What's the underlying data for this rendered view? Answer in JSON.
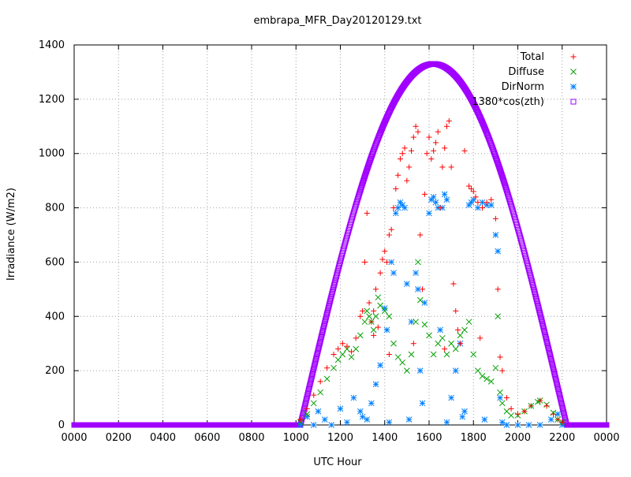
{
  "chart_data": {
    "type": "scatter",
    "title": "embrapa_MFR_Day20120129.txt",
    "xlabel": "UTC Hour",
    "ylabel": "Irradiance (W/m2)",
    "xlim": [
      0,
      24
    ],
    "ylim": [
      0,
      1400
    ],
    "x_tick_labels": [
      "0000",
      "0200",
      "0400",
      "0600",
      "0800",
      "1000",
      "1200",
      "1400",
      "1600",
      "1800",
      "2000",
      "2200",
      "0000"
    ],
    "y_ticks": [
      0,
      200,
      400,
      600,
      800,
      1000,
      1200,
      1400
    ],
    "grid": true,
    "legend_position": "top-right",
    "series": [
      {
        "name": "Total",
        "marker": "plus",
        "color": "#ff0000",
        "points": [
          [
            10.2,
            20
          ],
          [
            10.5,
            60
          ],
          [
            10.8,
            110
          ],
          [
            11.1,
            160
          ],
          [
            11.4,
            210
          ],
          [
            11.7,
            260
          ],
          [
            11.9,
            280
          ],
          [
            12.1,
            300
          ],
          [
            12.3,
            290
          ],
          [
            12.5,
            270
          ],
          [
            12.7,
            320
          ],
          [
            12.9,
            400
          ],
          [
            13.0,
            420
          ],
          [
            13.1,
            600
          ],
          [
            13.2,
            780
          ],
          [
            13.3,
            450
          ],
          [
            13.4,
            380
          ],
          [
            13.5,
            420
          ],
          [
            13.6,
            500
          ],
          [
            13.7,
            360
          ],
          [
            13.8,
            560
          ],
          [
            13.9,
            610
          ],
          [
            14.0,
            640
          ],
          [
            14.1,
            600
          ],
          [
            14.2,
            700
          ],
          [
            14.3,
            720
          ],
          [
            14.4,
            800
          ],
          [
            14.5,
            870
          ],
          [
            14.6,
            920
          ],
          [
            14.7,
            980
          ],
          [
            14.8,
            1000
          ],
          [
            14.9,
            1020
          ],
          [
            15.0,
            900
          ],
          [
            15.1,
            950
          ],
          [
            15.2,
            1010
          ],
          [
            15.3,
            1060
          ],
          [
            15.4,
            1100
          ],
          [
            15.5,
            1080
          ],
          [
            15.6,
            700
          ],
          [
            15.7,
            500
          ],
          [
            15.8,
            850
          ],
          [
            15.9,
            1000
          ],
          [
            16.0,
            1060
          ],
          [
            16.1,
            980
          ],
          [
            16.2,
            1010
          ],
          [
            16.3,
            1040
          ],
          [
            16.4,
            1080
          ],
          [
            16.5,
            800
          ],
          [
            16.6,
            950
          ],
          [
            16.7,
            1020
          ],
          [
            16.8,
            1100
          ],
          [
            16.9,
            1120
          ],
          [
            17.0,
            950
          ],
          [
            17.1,
            520
          ],
          [
            17.2,
            420
          ],
          [
            17.4,
            300
          ],
          [
            17.6,
            1010
          ],
          [
            17.8,
            880
          ],
          [
            17.9,
            870
          ],
          [
            18.0,
            860
          ],
          [
            18.1,
            840
          ],
          [
            18.2,
            820
          ],
          [
            18.4,
            800
          ],
          [
            18.6,
            820
          ],
          [
            18.8,
            830
          ],
          [
            19.0,
            760
          ],
          [
            19.1,
            500
          ],
          [
            19.2,
            250
          ],
          [
            19.3,
            200
          ],
          [
            19.5,
            100
          ],
          [
            19.7,
            60
          ],
          [
            20.0,
            40
          ],
          [
            20.3,
            50
          ],
          [
            20.6,
            70
          ],
          [
            21.0,
            90
          ],
          [
            21.3,
            70
          ],
          [
            21.6,
            40
          ],
          [
            21.8,
            20
          ],
          [
            22.0,
            10
          ],
          [
            13.5,
            330
          ],
          [
            14.2,
            260
          ],
          [
            15.3,
            300
          ],
          [
            16.7,
            280
          ],
          [
            17.3,
            350
          ],
          [
            18.3,
            320
          ]
        ]
      },
      {
        "name": "Diffuse",
        "marker": "cross",
        "color": "#00a000",
        "points": [
          [
            10.2,
            10
          ],
          [
            10.5,
            40
          ],
          [
            10.8,
            80
          ],
          [
            11.1,
            120
          ],
          [
            11.4,
            170
          ],
          [
            11.7,
            210
          ],
          [
            11.9,
            240
          ],
          [
            12.1,
            260
          ],
          [
            12.3,
            280
          ],
          [
            12.5,
            250
          ],
          [
            12.7,
            280
          ],
          [
            12.9,
            330
          ],
          [
            13.1,
            380
          ],
          [
            13.2,
            420
          ],
          [
            13.3,
            400
          ],
          [
            13.4,
            380
          ],
          [
            13.5,
            350
          ],
          [
            13.6,
            400
          ],
          [
            13.7,
            470
          ],
          [
            13.8,
            440
          ],
          [
            14.0,
            420
          ],
          [
            14.2,
            400
          ],
          [
            14.4,
            300
          ],
          [
            14.6,
            250
          ],
          [
            14.8,
            230
          ],
          [
            15.0,
            200
          ],
          [
            15.2,
            260
          ],
          [
            15.4,
            380
          ],
          [
            15.5,
            600
          ],
          [
            15.6,
            460
          ],
          [
            15.8,
            370
          ],
          [
            16.0,
            330
          ],
          [
            16.2,
            260
          ],
          [
            16.4,
            300
          ],
          [
            16.6,
            320
          ],
          [
            16.8,
            260
          ],
          [
            17.0,
            300
          ],
          [
            17.2,
            280
          ],
          [
            17.4,
            330
          ],
          [
            17.6,
            350
          ],
          [
            17.8,
            380
          ],
          [
            18.0,
            260
          ],
          [
            18.2,
            200
          ],
          [
            18.4,
            180
          ],
          [
            18.6,
            170
          ],
          [
            18.8,
            160
          ],
          [
            19.0,
            210
          ],
          [
            19.1,
            400
          ],
          [
            19.2,
            120
          ],
          [
            19.3,
            80
          ],
          [
            19.5,
            50
          ],
          [
            19.7,
            35
          ],
          [
            20.0,
            35
          ],
          [
            20.3,
            50
          ],
          [
            20.6,
            70
          ],
          [
            20.9,
            85
          ],
          [
            21.0,
            90
          ],
          [
            21.3,
            75
          ],
          [
            21.6,
            45
          ],
          [
            21.8,
            20
          ],
          [
            22.0,
            10
          ]
        ]
      },
      {
        "name": "DirNorm",
        "marker": "star",
        "color": "#0080ff",
        "points": [
          [
            10.2,
            0
          ],
          [
            10.5,
            30
          ],
          [
            10.8,
            0
          ],
          [
            11.0,
            50
          ],
          [
            11.3,
            20
          ],
          [
            11.6,
            0
          ],
          [
            12.0,
            60
          ],
          [
            12.3,
            10
          ],
          [
            12.6,
            100
          ],
          [
            12.9,
            50
          ],
          [
            13.2,
            20
          ],
          [
            13.4,
            80
          ],
          [
            13.6,
            150
          ],
          [
            13.8,
            220
          ],
          [
            14.0,
            430
          ],
          [
            14.1,
            350
          ],
          [
            14.3,
            600
          ],
          [
            14.4,
            560
          ],
          [
            14.5,
            780
          ],
          [
            14.6,
            800
          ],
          [
            14.7,
            820
          ],
          [
            14.8,
            810
          ],
          [
            14.9,
            800
          ],
          [
            15.0,
            520
          ],
          [
            15.2,
            380
          ],
          [
            15.4,
            560
          ],
          [
            15.5,
            500
          ],
          [
            15.6,
            200
          ],
          [
            15.7,
            80
          ],
          [
            15.8,
            450
          ],
          [
            16.0,
            780
          ],
          [
            16.1,
            830
          ],
          [
            16.2,
            840
          ],
          [
            16.3,
            820
          ],
          [
            16.4,
            800
          ],
          [
            16.5,
            350
          ],
          [
            16.6,
            800
          ],
          [
            16.7,
            850
          ],
          [
            16.8,
            830
          ],
          [
            17.0,
            100
          ],
          [
            17.2,
            200
          ],
          [
            17.4,
            300
          ],
          [
            17.6,
            50
          ],
          [
            17.8,
            810
          ],
          [
            17.9,
            820
          ],
          [
            18.0,
            830
          ],
          [
            18.2,
            800
          ],
          [
            18.4,
            820
          ],
          [
            18.6,
            810
          ],
          [
            18.8,
            810
          ],
          [
            19.0,
            700
          ],
          [
            19.1,
            640
          ],
          [
            19.2,
            100
          ],
          [
            19.3,
            10
          ],
          [
            19.5,
            0
          ],
          [
            20.0,
            0
          ],
          [
            20.5,
            0
          ],
          [
            21.0,
            0
          ],
          [
            21.5,
            20
          ],
          [
            21.8,
            40
          ],
          [
            22.0,
            0
          ],
          [
            13.0,
            30
          ],
          [
            14.2,
            10
          ],
          [
            15.1,
            20
          ],
          [
            16.8,
            10
          ],
          [
            17.5,
            30
          ],
          [
            18.5,
            20
          ]
        ]
      },
      {
        "name": "1380*cos(zth)",
        "marker": "square",
        "color": "#a000ff",
        "sunrise": 10.2,
        "sunset": 22.2,
        "peak_x": 16.2,
        "peak_y": 1330
      }
    ]
  }
}
